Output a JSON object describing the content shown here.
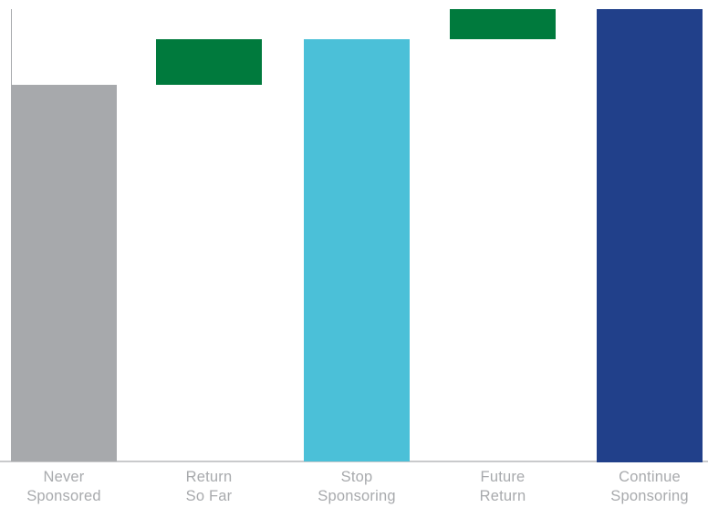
{
  "chart_data": {
    "type": "bar",
    "subtype": "waterfall",
    "title": "",
    "xlabel": "",
    "ylabel": "",
    "ylim": [
      0,
      100
    ],
    "grid": false,
    "legend": false,
    "axis": {
      "y_axis_line_color": "#a7a9ac",
      "x_axis_line_color": "#c9cacc",
      "tick_label_color": "#a8aaad",
      "y_tick_labels": [],
      "x_tick_labels_two_line": true
    },
    "categories": [
      "Never Sponsored",
      "Return So Far",
      "Stop Sponsoring",
      "Future Return",
      "Continue Sponsoring"
    ],
    "bars": [
      {
        "label": "Never\nSponsored",
        "base_pct": 0,
        "top_pct": 83.3,
        "value_pct": 83.3,
        "color": "#a7a9ac",
        "color_name": "gray"
      },
      {
        "label": "Return\nSo Far",
        "base_pct": 83.3,
        "top_pct": 93.3,
        "value_pct": 10.0,
        "color": "#007a3d",
        "color_name": "green"
      },
      {
        "label": "Stop\nSponsoring",
        "base_pct": 0,
        "top_pct": 93.3,
        "value_pct": 93.3,
        "color": "#4bc0d8",
        "color_name": "cyan"
      },
      {
        "label": "Future\nReturn",
        "base_pct": 93.3,
        "top_pct": 100,
        "value_pct": 6.7,
        "color": "#007a3d",
        "color_name": "green"
      },
      {
        "label": "Continue\nSponsoring",
        "base_pct": 0,
        "top_pct": 100,
        "value_pct": 100,
        "color": "#21408a",
        "color_name": "navy"
      }
    ]
  }
}
